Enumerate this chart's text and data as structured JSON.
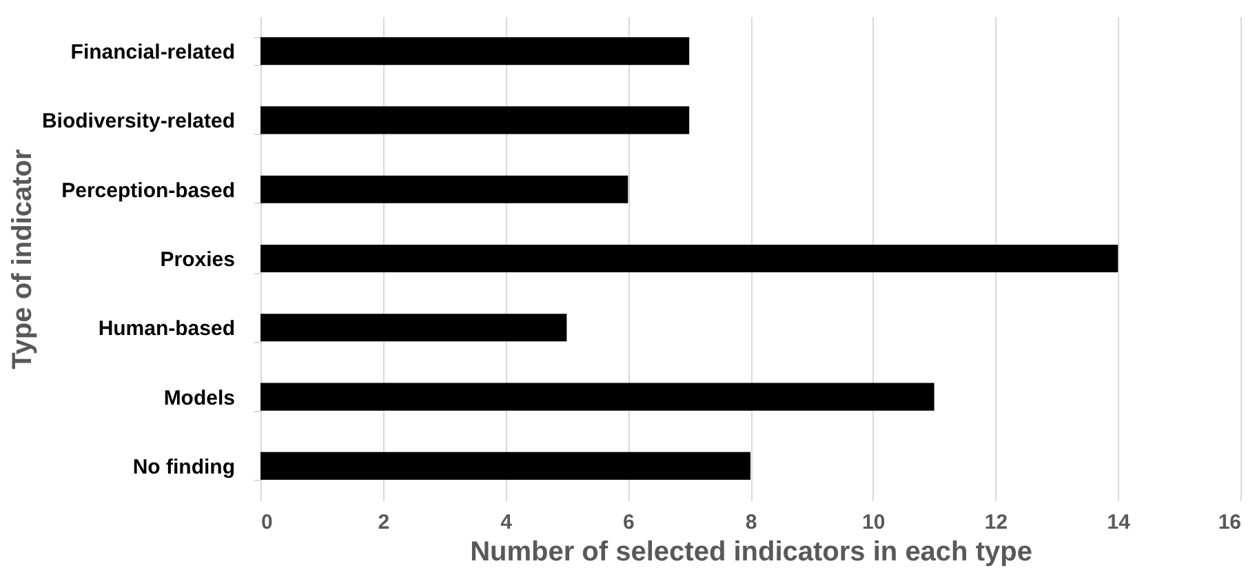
{
  "chart_data": {
    "type": "bar",
    "orientation": "horizontal",
    "xlabel": "Number of selected indicators in each type",
    "ylabel": "Type of indicator",
    "categories": [
      "Financial-related",
      "Biodiversity-related",
      "Perception-based",
      "Proxies",
      "Human-based",
      "Models",
      "No finding"
    ],
    "values": [
      7,
      7,
      6,
      14,
      5,
      11,
      8
    ],
    "color": "#000000",
    "xlim": [
      0,
      16
    ],
    "xticks": [
      0,
      2,
      4,
      6,
      8,
      10,
      12,
      14,
      16
    ],
    "grid": "x"
  }
}
